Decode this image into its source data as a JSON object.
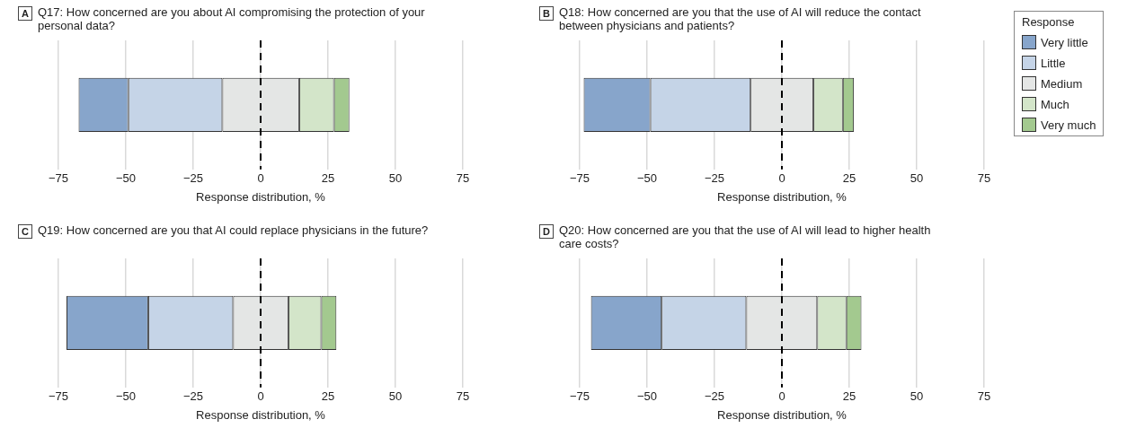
{
  "chart_data": [
    {
      "type": "bar",
      "orientation": "horizontal",
      "title": "Q17: How concerned are you about AI compromising the protection of your personal data?",
      "annotations": [
        "A"
      ],
      "xlabel": "Response distribution, %",
      "categories": [
        null
      ],
      "xlim": [
        -75,
        75
      ],
      "xticks": [
        {
          "value": -75,
          "label": "−75"
        },
        {
          "value": -50,
          "label": "−50"
        },
        {
          "value": -25,
          "label": "−25"
        },
        0,
        25,
        50,
        75
      ],
      "grid": "x",
      "ref_lines": [
        {
          "axis": "x",
          "value": 0,
          "line_style": "dashed",
          "color": "#000000"
        }
      ],
      "series": [
        {
          "color": "#87a5cb",
          "base": [
            -67.5
          ],
          "values": [
            18.4
          ]
        },
        {
          "color": "#c5d4e7",
          "base": [
            -49.1
          ],
          "values": [
            34.9
          ]
        },
        {
          "color": "#e4e6e5",
          "base": [
            -14.2
          ],
          "values": [
            28.5
          ]
        },
        {
          "color": "#d3e5c9",
          "base": [
            14.3
          ],
          "values": [
            12.9
          ]
        },
        {
          "color": "#a3c98f",
          "base": [
            27.2
          ],
          "values": [
            5.7
          ]
        }
      ]
    },
    {
      "type": "bar",
      "orientation": "horizontal",
      "title": "Q18: How concerned are you that the use of AI will reduce the contact between physicians and patients?",
      "annotations": [
        "B"
      ],
      "xlabel": "Response distribution, %",
      "categories": [
        null
      ],
      "xlim": [
        -75,
        75
      ],
      "xticks": [
        {
          "value": -75,
          "label": "−75"
        },
        {
          "value": -50,
          "label": "−50"
        },
        {
          "value": -25,
          "label": "−25"
        },
        0,
        25,
        50,
        75
      ],
      "grid": "x",
      "legend": "right",
      "legend_title": "Response",
      "ref_lines": [
        {
          "axis": "x",
          "value": 0,
          "line_style": "dashed",
          "color": "#000000"
        }
      ],
      "series": [
        {
          "name": "Very little",
          "color": "#87a5cb",
          "base": [
            -73.5
          ],
          "values": [
            24.7
          ]
        },
        {
          "name": "Little",
          "color": "#c5d4e7",
          "base": [
            -48.8
          ],
          "values": [
            37.2
          ]
        },
        {
          "name": "Medium",
          "color": "#e4e6e5",
          "base": [
            -11.6
          ],
          "values": [
            23.3
          ]
        },
        {
          "name": "Much",
          "color": "#d3e5c9",
          "base": [
            11.7
          ],
          "values": [
            10.9
          ]
        },
        {
          "name": "Very much",
          "color": "#a3c98f",
          "base": [
            22.6
          ],
          "values": [
            4.1
          ]
        }
      ]
    },
    {
      "type": "bar",
      "orientation": "horizontal",
      "title": "Q19: How concerned are you that AI could replace physicians in the future?",
      "annotations": [
        "C"
      ],
      "xlabel": "Response distribution, %",
      "categories": [
        null
      ],
      "xlim": [
        -75,
        75
      ],
      "xticks": [
        {
          "value": -75,
          "label": "−75"
        },
        {
          "value": -50,
          "label": "−50"
        },
        {
          "value": -25,
          "label": "−25"
        },
        0,
        25,
        50,
        75
      ],
      "grid": "x",
      "ref_lines": [
        {
          "axis": "x",
          "value": 0,
          "line_style": "dashed",
          "color": "#000000"
        }
      ],
      "series": [
        {
          "color": "#87a5cb",
          "base": [
            -72.0
          ],
          "values": [
            30.3
          ]
        },
        {
          "color": "#c5d4e7",
          "base": [
            -41.7
          ],
          "values": [
            31.5
          ]
        },
        {
          "color": "#e4e6e5",
          "base": [
            -10.2
          ],
          "values": [
            20.5
          ]
        },
        {
          "color": "#d3e5c9",
          "base": [
            10.3
          ],
          "values": [
            12.2
          ]
        },
        {
          "color": "#a3c98f",
          "base": [
            22.5
          ],
          "values": [
            5.6
          ]
        }
      ]
    },
    {
      "type": "bar",
      "orientation": "horizontal",
      "title": "Q20: How concerned are you that the use of AI will lead to higher health care costs?",
      "annotations": [
        "D"
      ],
      "xlabel": "Response distribution, %",
      "categories": [
        null
      ],
      "xlim": [
        -75,
        75
      ],
      "xticks": [
        {
          "value": -75,
          "label": "−75"
        },
        {
          "value": -50,
          "label": "−50"
        },
        {
          "value": -25,
          "label": "−25"
        },
        0,
        25,
        50,
        75
      ],
      "grid": "x",
      "ref_lines": [
        {
          "axis": "x",
          "value": 0,
          "line_style": "dashed",
          "color": "#000000"
        }
      ],
      "series": [
        {
          "color": "#87a5cb",
          "base": [
            -70.8
          ],
          "values": [
            26.2
          ]
        },
        {
          "color": "#c5d4e7",
          "base": [
            -44.6
          ],
          "values": [
            31.4
          ]
        },
        {
          "color": "#e4e6e5",
          "base": [
            -13.2
          ],
          "values": [
            26.3
          ]
        },
        {
          "color": "#d3e5c9",
          "base": [
            13.1
          ],
          "values": [
            10.8
          ]
        },
        {
          "color": "#a3c98f",
          "base": [
            23.9
          ],
          "values": [
            5.6
          ]
        }
      ]
    }
  ]
}
